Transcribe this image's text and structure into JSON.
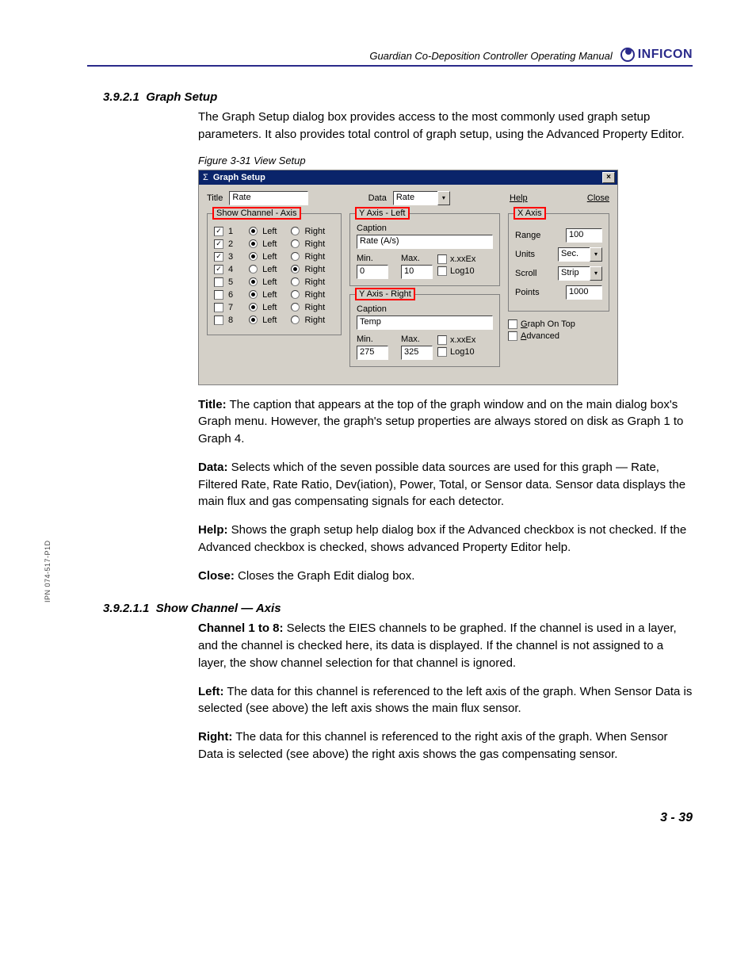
{
  "header": {
    "manual_title": "Guardian Co-Deposition Controller Operating Manual",
    "logo_text": "INFICON"
  },
  "side_note": "IPN 074-517-P1D",
  "page_number": "3 - 39",
  "sections": {
    "h1_num": "3.9.2.1",
    "h1_text": "Graph Setup",
    "intro": "The Graph Setup dialog box provides access to the most commonly used graph setup parameters. It also provides total control of graph setup, using the Advanced Property Editor.",
    "fig_caption": "Figure 3-31  View Setup",
    "h2_num": "3.9.2.1.1",
    "h2_text": "Show Channel — Axis"
  },
  "dialog": {
    "title": "Graph Setup",
    "sigma": "Σ",
    "title_label": "Title",
    "title_value": "Rate",
    "data_label": "Data",
    "data_value": "Rate",
    "help_label": "Help",
    "close_label": "Close",
    "group_channels": "Show Channel - Axis",
    "channels": [
      {
        "n": "1",
        "checked": true,
        "left": true
      },
      {
        "n": "2",
        "checked": true,
        "left": true
      },
      {
        "n": "3",
        "checked": true,
        "left": true
      },
      {
        "n": "4",
        "checked": true,
        "left": false
      },
      {
        "n": "5",
        "checked": false,
        "left": true
      },
      {
        "n": "6",
        "checked": false,
        "left": true
      },
      {
        "n": "7",
        "checked": false,
        "left": true
      },
      {
        "n": "8",
        "checked": false,
        "left": true
      }
    ],
    "left_label": "Left",
    "right_label": "Right",
    "yleft": {
      "legend": "Y Axis - Left",
      "caption_label": "Caption",
      "caption_value": "Rate (A/s)",
      "min_label": "Min.",
      "max_label": "Max.",
      "min_value": "0",
      "max_value": "10",
      "xxex_label": "x.xxEx",
      "log_label": "Log10"
    },
    "yright": {
      "legend": "Y Axis - Right",
      "caption_label": "Caption",
      "caption_value": "Temp",
      "min_label": "Min.",
      "max_label": "Max.",
      "min_value": "275",
      "max_value": "325",
      "xxex_label": "x.xxEx",
      "log_label": "Log10"
    },
    "xaxis": {
      "legend": "X Axis",
      "range_label": "Range",
      "range_value": "100",
      "units_label": "Units",
      "units_value": "Sec.",
      "scroll_label": "Scroll",
      "scroll_value": "Strip",
      "points_label": "Points",
      "points_value": "1000"
    },
    "graph_on_top": "Graph On Top",
    "advanced": "Advanced"
  },
  "descriptions": {
    "title_b": "Title:",
    "title_t": " The caption that appears at the top of the graph window and on the main dialog box's Graph menu. However, the graph's setup properties are always stored on disk as Graph 1 to Graph 4.",
    "data_b": "Data:",
    "data_t": " Selects which of the seven possible data sources are used for this graph — Rate, Filtered Rate, Rate Ratio, Dev(iation), Power, Total, or Sensor data. Sensor data displays the main flux and gas compensating signals for each detector.",
    "help_b": "Help:",
    "help_t": " Shows the graph setup help dialog box if the Advanced checkbox is not checked. If the Advanced checkbox is checked, shows advanced Property Editor help.",
    "close_b": "Close:",
    "close_t": " Closes the Graph Edit dialog box.",
    "ch_b": "Channel 1 to 8:",
    "ch_t": " Selects the EIES channels to be graphed. If the channel is used in a layer, and the channel is checked here, its data is displayed. If the channel is not assigned to a layer, the show channel selection for that channel is ignored.",
    "left_b": "Left:",
    "left_t": " The data for this channel is referenced to the left axis of the graph. When Sensor Data is selected (see above) the left axis shows the main flux sensor.",
    "right_b": "Right:",
    "right_t": " The data for this channel is referenced to the right axis of the graph. When Sensor Data is selected (see above) the right axis shows the gas compensating sensor."
  }
}
